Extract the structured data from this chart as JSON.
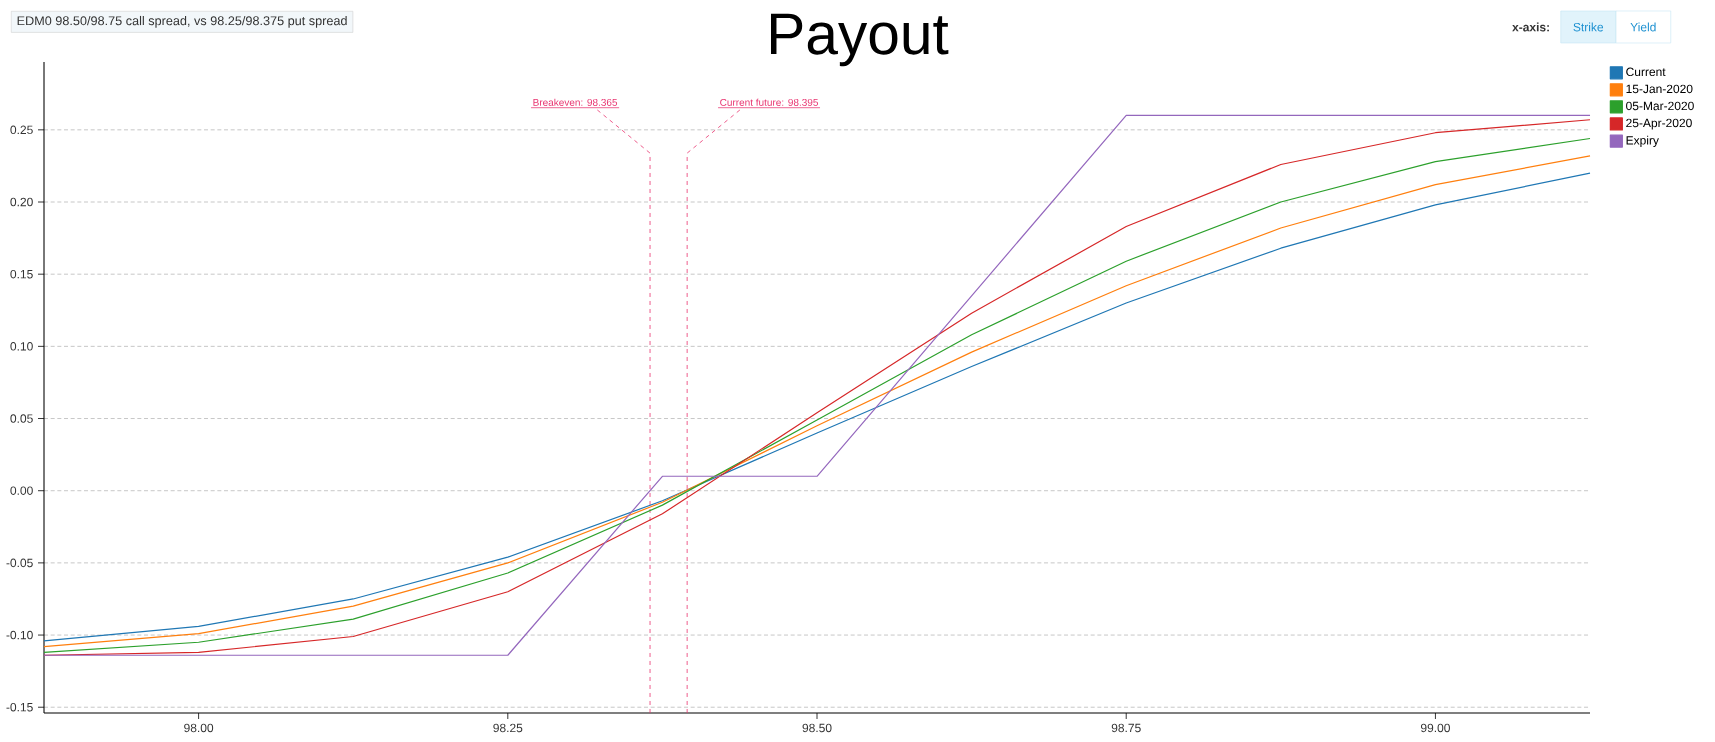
{
  "chart_data": {
    "type": "line",
    "title": "Payout",
    "subtitle": "EDM0 98.50/98.75 call spread, vs 98.25/98.375 put spread",
    "annotations": [
      "x-axis:",
      "Strike",
      "Yield"
    ],
    "x": [
      97.875,
      98.0,
      98.125,
      98.25,
      98.375,
      98.5,
      98.625,
      98.75,
      98.875,
      99.0,
      99.125
    ],
    "series": [
      {
        "name": "Current",
        "color": "#1f77b4",
        "values": [
          -0.104,
          -0.094,
          -0.075,
          -0.046,
          -0.007,
          0.04,
          0.086,
          0.13,
          0.168,
          0.198,
          0.22
        ]
      },
      {
        "name": "15-Jan-2020",
        "color": "#ff7f0e",
        "values": [
          -0.108,
          -0.099,
          -0.08,
          -0.05,
          -0.008,
          0.045,
          0.096,
          0.142,
          0.182,
          0.212,
          0.232
        ]
      },
      {
        "name": "05-Mar-2020",
        "color": "#2ca02c",
        "values": [
          -0.112,
          -0.105,
          -0.089,
          -0.057,
          -0.01,
          0.049,
          0.108,
          0.159,
          0.2,
          0.228,
          0.244
        ]
      },
      {
        "name": "25-Apr-2020",
        "color": "#d62728",
        "values": [
          -0.114,
          -0.112,
          -0.101,
          -0.07,
          -0.016,
          0.054,
          0.123,
          0.183,
          0.226,
          0.248,
          0.257
        ]
      },
      {
        "name": "Expiry",
        "color": "#9467bd",
        "values": [
          -0.114,
          -0.114,
          -0.114,
          -0.114,
          0.01,
          0.01,
          0.135,
          0.26,
          0.26,
          0.26,
          0.26
        ]
      }
    ],
    "xlim": [
      97.875,
      99.125
    ],
    "ylim": [
      -0.154,
      0.297
    ],
    "xticks": [
      {
        "value": 98.0,
        "label": "98.00"
      },
      {
        "value": 98.25,
        "label": "98.25"
      },
      {
        "value": 98.5,
        "label": "98.50"
      },
      {
        "value": 98.75,
        "label": "98.75"
      },
      {
        "value": 99.0,
        "label": "99.00"
      }
    ],
    "yticks": [
      {
        "value": -0.15,
        "label": "-0.15"
      },
      {
        "value": -0.1,
        "label": "-0.10"
      },
      {
        "value": -0.05,
        "label": "-0.05"
      },
      {
        "value": 0.0,
        "label": "0.00"
      },
      {
        "value": 0.05,
        "label": "0.05"
      },
      {
        "value": 0.1,
        "label": "0.10"
      },
      {
        "value": 0.15,
        "label": "0.15"
      },
      {
        "value": 0.2,
        "label": "0.20"
      },
      {
        "value": 0.25,
        "label": "0.25"
      }
    ],
    "ref_lines": [
      {
        "axis": "x",
        "value": 98.365,
        "label": "Breakeven: 98.365",
        "color": "#e8336f",
        "line_style": "dashed"
      },
      {
        "axis": "x",
        "value": 98.395,
        "label": "Current future: 98.395",
        "color": "#e8336f",
        "line_style": "dashed"
      }
    ],
    "grid": "y",
    "legend": "top right",
    "marker": "none",
    "line_style": "solid"
  }
}
